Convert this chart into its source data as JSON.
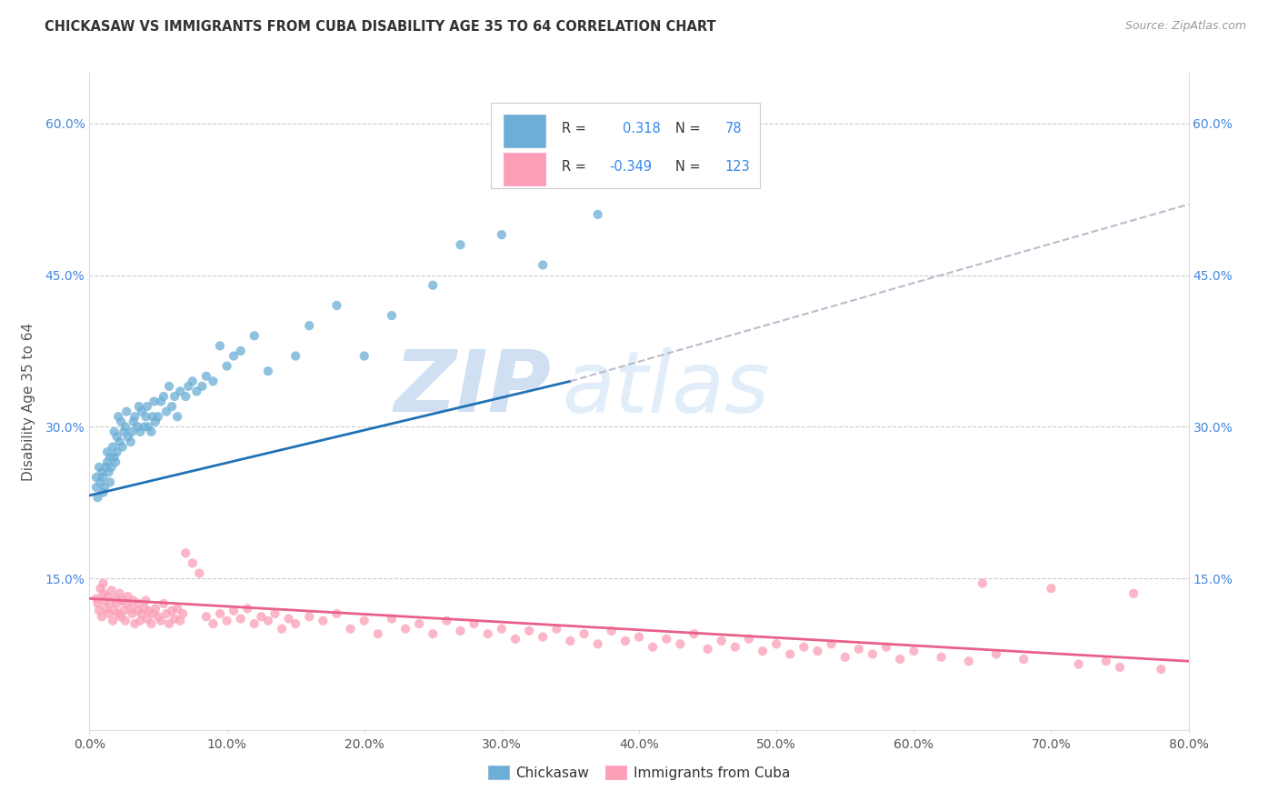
{
  "title": "CHICKASAW VS IMMIGRANTS FROM CUBA DISABILITY AGE 35 TO 64 CORRELATION CHART",
  "source": "Source: ZipAtlas.com",
  "ylabel": "Disability Age 35 to 64",
  "x_min": 0.0,
  "x_max": 0.8,
  "y_min": 0.0,
  "y_max": 0.65,
  "chickasaw_R": 0.318,
  "chickasaw_N": 78,
  "cuba_R": -0.349,
  "cuba_N": 123,
  "chickasaw_color": "#6baed6",
  "cuba_color": "#fa9fb5",
  "trendline_chickasaw_color": "#2171b5",
  "trendline_cuba_color": "#e8608a",
  "watermark_zip": "ZIP",
  "watermark_atlas": "atlas",
  "legend_label_1": "Chickasaw",
  "legend_label_2": "Immigrants from Cuba",
  "chickasaw_trend_x0": 0.0,
  "chickasaw_trend_y0": 0.232,
  "chickasaw_trend_x1": 0.35,
  "chickasaw_trend_y1": 0.345,
  "chickasaw_trend_xend": 0.8,
  "chickasaw_trend_yend": 0.52,
  "cuba_trend_x0": 0.0,
  "cuba_trend_y0": 0.13,
  "cuba_trend_x1": 0.8,
  "cuba_trend_y1": 0.068,
  "chick_x": [
    0.005,
    0.005,
    0.006,
    0.007,
    0.008,
    0.009,
    0.01,
    0.01,
    0.011,
    0.012,
    0.013,
    0.013,
    0.014,
    0.015,
    0.015,
    0.016,
    0.017,
    0.018,
    0.018,
    0.019,
    0.02,
    0.02,
    0.021,
    0.022,
    0.023,
    0.024,
    0.025,
    0.026,
    0.027,
    0.028,
    0.03,
    0.031,
    0.032,
    0.033,
    0.035,
    0.036,
    0.037,
    0.038,
    0.04,
    0.041,
    0.042,
    0.043,
    0.045,
    0.046,
    0.047,
    0.048,
    0.05,
    0.052,
    0.054,
    0.056,
    0.058,
    0.06,
    0.062,
    0.064,
    0.066,
    0.07,
    0.072,
    0.075,
    0.078,
    0.082,
    0.085,
    0.09,
    0.095,
    0.1,
    0.105,
    0.11,
    0.12,
    0.13,
    0.15,
    0.16,
    0.18,
    0.2,
    0.22,
    0.25,
    0.27,
    0.3,
    0.33,
    0.37
  ],
  "chick_y": [
    0.24,
    0.25,
    0.23,
    0.26,
    0.245,
    0.255,
    0.235,
    0.25,
    0.24,
    0.26,
    0.265,
    0.275,
    0.255,
    0.27,
    0.245,
    0.26,
    0.28,
    0.27,
    0.295,
    0.265,
    0.275,
    0.29,
    0.31,
    0.285,
    0.305,
    0.28,
    0.295,
    0.3,
    0.315,
    0.29,
    0.285,
    0.295,
    0.305,
    0.31,
    0.3,
    0.32,
    0.295,
    0.315,
    0.3,
    0.31,
    0.32,
    0.3,
    0.295,
    0.31,
    0.325,
    0.305,
    0.31,
    0.325,
    0.33,
    0.315,
    0.34,
    0.32,
    0.33,
    0.31,
    0.335,
    0.33,
    0.34,
    0.345,
    0.335,
    0.34,
    0.35,
    0.345,
    0.38,
    0.36,
    0.37,
    0.375,
    0.39,
    0.355,
    0.37,
    0.4,
    0.42,
    0.37,
    0.41,
    0.44,
    0.48,
    0.49,
    0.46,
    0.51
  ],
  "cuba_x": [
    0.005,
    0.006,
    0.007,
    0.008,
    0.009,
    0.01,
    0.01,
    0.011,
    0.012,
    0.013,
    0.014,
    0.015,
    0.016,
    0.017,
    0.018,
    0.019,
    0.02,
    0.021,
    0.022,
    0.023,
    0.024,
    0.025,
    0.026,
    0.027,
    0.028,
    0.03,
    0.031,
    0.032,
    0.033,
    0.035,
    0.036,
    0.037,
    0.038,
    0.04,
    0.041,
    0.042,
    0.043,
    0.045,
    0.046,
    0.048,
    0.05,
    0.052,
    0.054,
    0.056,
    0.058,
    0.06,
    0.062,
    0.064,
    0.066,
    0.068,
    0.07,
    0.075,
    0.08,
    0.085,
    0.09,
    0.095,
    0.1,
    0.105,
    0.11,
    0.115,
    0.12,
    0.125,
    0.13,
    0.135,
    0.14,
    0.145,
    0.15,
    0.16,
    0.17,
    0.18,
    0.19,
    0.2,
    0.21,
    0.22,
    0.23,
    0.24,
    0.25,
    0.26,
    0.27,
    0.28,
    0.29,
    0.3,
    0.31,
    0.32,
    0.33,
    0.34,
    0.35,
    0.36,
    0.37,
    0.38,
    0.39,
    0.4,
    0.41,
    0.42,
    0.43,
    0.44,
    0.45,
    0.46,
    0.47,
    0.48,
    0.49,
    0.5,
    0.51,
    0.52,
    0.53,
    0.54,
    0.55,
    0.56,
    0.57,
    0.58,
    0.59,
    0.6,
    0.62,
    0.64,
    0.65,
    0.66,
    0.68,
    0.7,
    0.72,
    0.74,
    0.75,
    0.76,
    0.78
  ],
  "cuba_y": [
    0.13,
    0.125,
    0.118,
    0.14,
    0.112,
    0.135,
    0.145,
    0.128,
    0.12,
    0.132,
    0.115,
    0.125,
    0.138,
    0.108,
    0.118,
    0.13,
    0.125,
    0.115,
    0.135,
    0.112,
    0.128,
    0.118,
    0.108,
    0.125,
    0.132,
    0.12,
    0.115,
    0.128,
    0.105,
    0.118,
    0.125,
    0.108,
    0.115,
    0.12,
    0.128,
    0.11,
    0.118,
    0.105,
    0.115,
    0.12,
    0.112,
    0.108,
    0.125,
    0.115,
    0.105,
    0.118,
    0.11,
    0.12,
    0.108,
    0.115,
    0.175,
    0.165,
    0.155,
    0.112,
    0.105,
    0.115,
    0.108,
    0.118,
    0.11,
    0.12,
    0.105,
    0.112,
    0.108,
    0.115,
    0.1,
    0.11,
    0.105,
    0.112,
    0.108,
    0.115,
    0.1,
    0.108,
    0.095,
    0.11,
    0.1,
    0.105,
    0.095,
    0.108,
    0.098,
    0.105,
    0.095,
    0.1,
    0.09,
    0.098,
    0.092,
    0.1,
    0.088,
    0.095,
    0.085,
    0.098,
    0.088,
    0.092,
    0.082,
    0.09,
    0.085,
    0.095,
    0.08,
    0.088,
    0.082,
    0.09,
    0.078,
    0.085,
    0.075,
    0.082,
    0.078,
    0.085,
    0.072,
    0.08,
    0.075,
    0.082,
    0.07,
    0.078,
    0.072,
    0.068,
    0.145,
    0.075,
    0.07,
    0.14,
    0.065,
    0.068,
    0.062,
    0.135,
    0.06
  ]
}
